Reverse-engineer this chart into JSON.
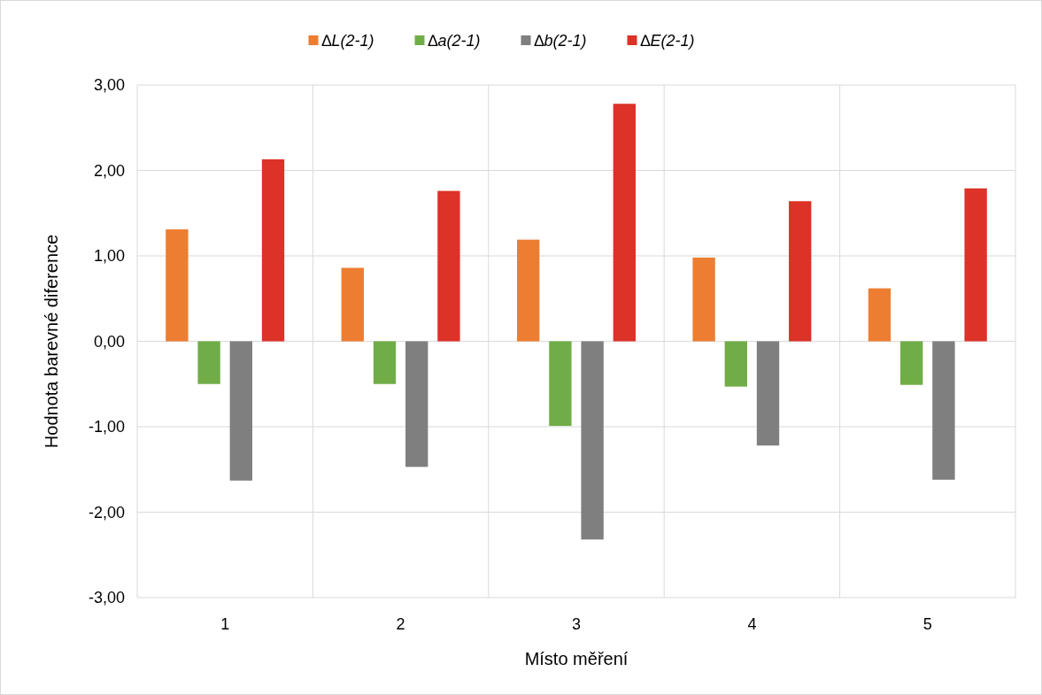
{
  "chart_data": {
    "type": "bar",
    "xlabel": "Místo měření",
    "ylabel": "Hodnota barevné diference",
    "categories": [
      "1",
      "2",
      "3",
      "4",
      "5"
    ],
    "series": [
      {
        "name": "∆L(2-1)",
        "color": "#ed7d31",
        "values": [
          1.31,
          0.86,
          1.19,
          0.98,
          0.62
        ]
      },
      {
        "name": "∆a(2-1)",
        "color": "#70ad47",
        "values": [
          -0.5,
          -0.5,
          -0.99,
          -0.53,
          -0.51
        ]
      },
      {
        "name": "∆b(2-1)",
        "color": "#7f7f7f",
        "values": [
          -1.63,
          -1.47,
          -2.32,
          -1.22,
          -1.62
        ]
      },
      {
        "name": "∆E(2-1)",
        "color": "#dc3228",
        "values": [
          2.13,
          1.76,
          2.78,
          1.64,
          1.79
        ]
      }
    ],
    "ylim": [
      -3,
      3
    ],
    "yticks": [
      {
        "value": -3,
        "label": "-3,00"
      },
      {
        "value": -2,
        "label": "-2,00"
      },
      {
        "value": -1,
        "label": "-1,00"
      },
      {
        "value": 0,
        "label": "0,00"
      },
      {
        "value": 1,
        "label": "1,00"
      },
      {
        "value": 2,
        "label": "2,00"
      },
      {
        "value": 3,
        "label": "3,00"
      }
    ],
    "grid": true,
    "legend": "top"
  }
}
